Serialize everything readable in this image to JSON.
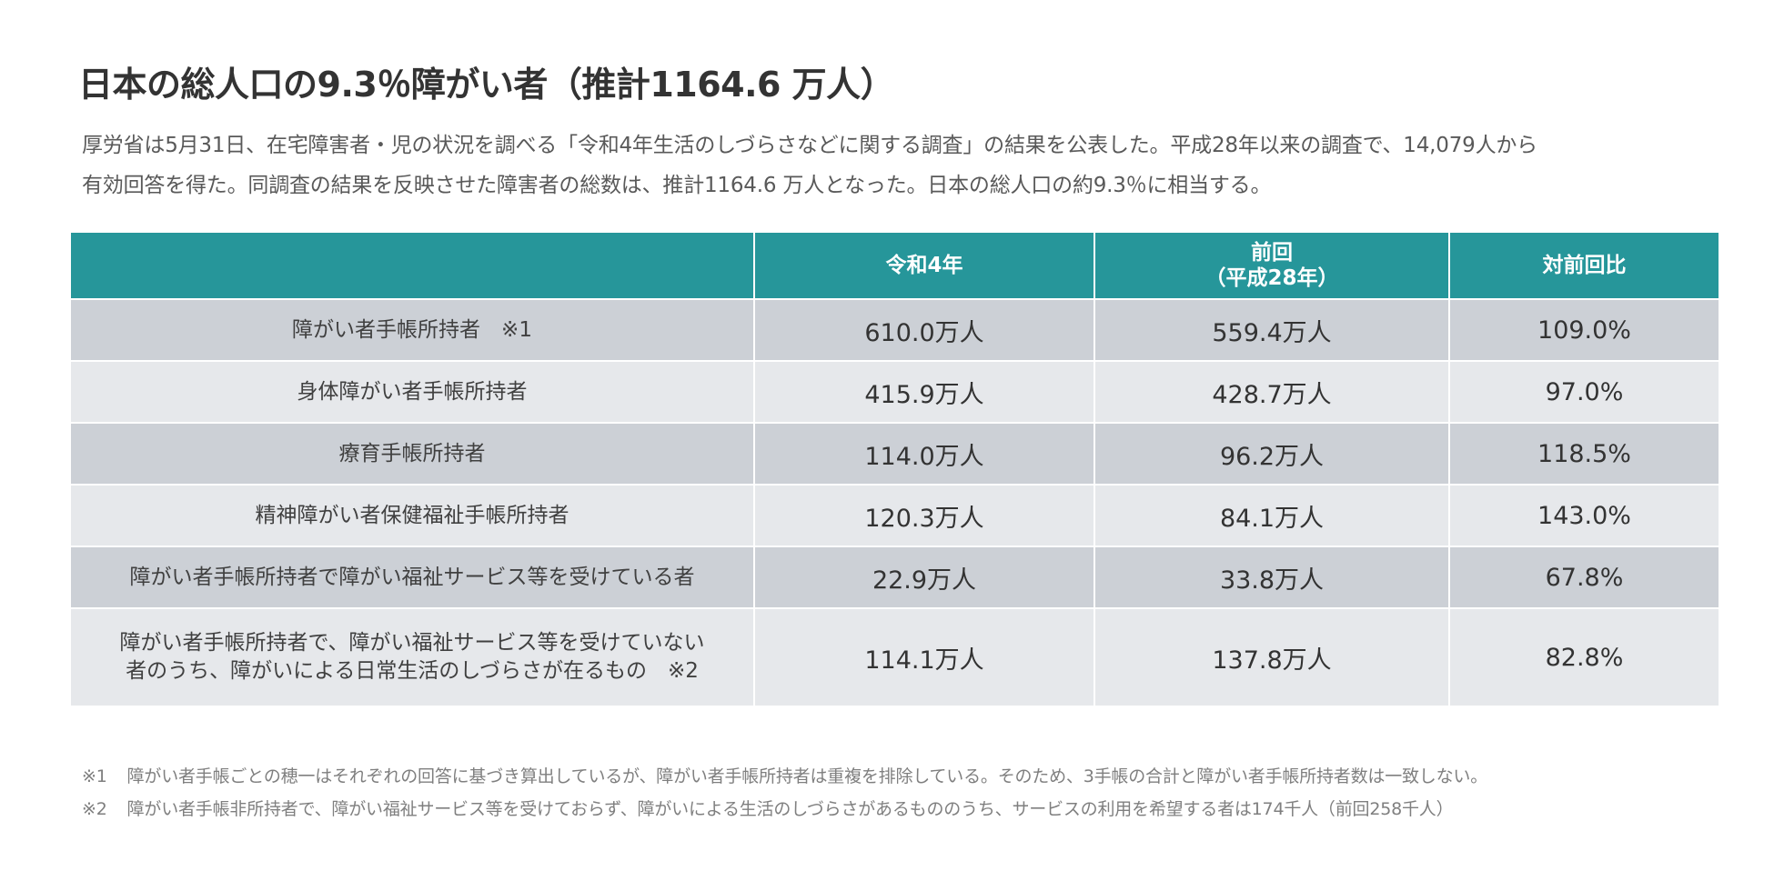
{
  "title": "日本の総人口の9.3％障がい者（推計1164.6 万人）",
  "intro": {
    "line1": "厚労省は5月31日、在宅障害者・児の状況を調べる「令和4年生活のしづらさなどに関する調査」の結果を公表した。平成28年以来の調査で、14,079人から",
    "line2": "有効回答を得た。同調査の結果を反映させた障害者の総数は、推計1164.6 万人となった。日本の総人口の約9.3％に相当する。"
  },
  "table": {
    "headers": {
      "col0": "",
      "col1": "令和4年",
      "col2_line1": "前回",
      "col2_line2": "（平成28年）",
      "col3": "対前回比"
    },
    "rows": [
      {
        "label": "障がい者手帳所持者　※1",
        "current": "610.0万人",
        "previous": "559.4万人",
        "ratio": "109.0%"
      },
      {
        "label": "身体障がい者手帳所持者",
        "current": "415.9万人",
        "previous": "428.7万人",
        "ratio": "97.0%"
      },
      {
        "label": "療育手帳所持者",
        "current": "114.0万人",
        "previous": "96.2万人",
        "ratio": "118.5%"
      },
      {
        "label": "精神障がい者保健福祉手帳所持者",
        "current": "120.3万人",
        "previous": "84.1万人",
        "ratio": "143.0%"
      },
      {
        "label": "障がい者手帳所持者で障がい福祉サービス等を受けている者",
        "current": "22.9万人",
        "previous": "33.8万人",
        "ratio": "67.8%"
      },
      {
        "label_line1": "障がい者手帳所持者で、障がい福祉サービス等を受けていない",
        "label_line2": "者のうち、障がいによる日常生活のしづらさが在るもの　※2",
        "current": "114.1万人",
        "previous": "137.8万人",
        "ratio": "82.8%"
      }
    ]
  },
  "notes": [
    {
      "mark": "※1",
      "text": "障がい者手帳ごとの穂一はそれぞれの回答に基づき算出しているが、障がい者手帳所持者は重複を排除している。そのため、3手帳の合計と障がい者手帳所持者数は一致しない。"
    },
    {
      "mark": "※2",
      "text": "障がい者手帳非所持者で、障がい福祉サービス等を受けておらず、障がいによる生活のしづらさがあるもののうち、サービスの利用を希望する者は174千人（前回258千人）"
    }
  ],
  "colors": {
    "header_teal": "#26969a",
    "row_dark": "#ccd0d6",
    "row_light": "#e6e8eb"
  }
}
